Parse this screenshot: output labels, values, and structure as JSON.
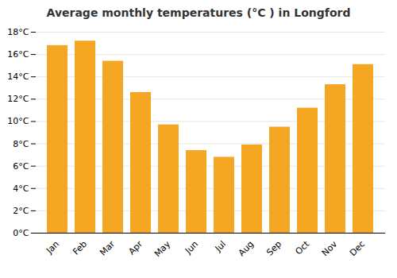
{
  "chart_data": {
    "type": "bar",
    "title": "Average monthly temperatures (°C ) in Longford",
    "categories": [
      "Jan",
      "Feb",
      "Mar",
      "Apr",
      "May",
      "Jun",
      "Jul",
      "Aug",
      "Sep",
      "Oct",
      "Nov",
      "Dec"
    ],
    "values": [
      16.8,
      17.2,
      15.4,
      12.6,
      9.7,
      7.4,
      6.8,
      7.9,
      9.5,
      11.2,
      13.3,
      15.1
    ],
    "color": "#F5A623",
    "ylim": [
      0,
      18
    ],
    "yticks": [
      {
        "value": 0,
        "label": "0°C"
      },
      {
        "value": 2,
        "label": "2°C"
      },
      {
        "value": 4,
        "label": "4°C"
      },
      {
        "value": 6,
        "label": "6°C"
      },
      {
        "value": 8,
        "label": "8°C"
      },
      {
        "value": 10,
        "label": "10°C"
      },
      {
        "value": 12,
        "label": "12°C"
      },
      {
        "value": 14,
        "label": "14°C"
      },
      {
        "value": 16,
        "label": "16°C"
      },
      {
        "value": 18,
        "label": "18°C"
      }
    ],
    "grid": true
  }
}
